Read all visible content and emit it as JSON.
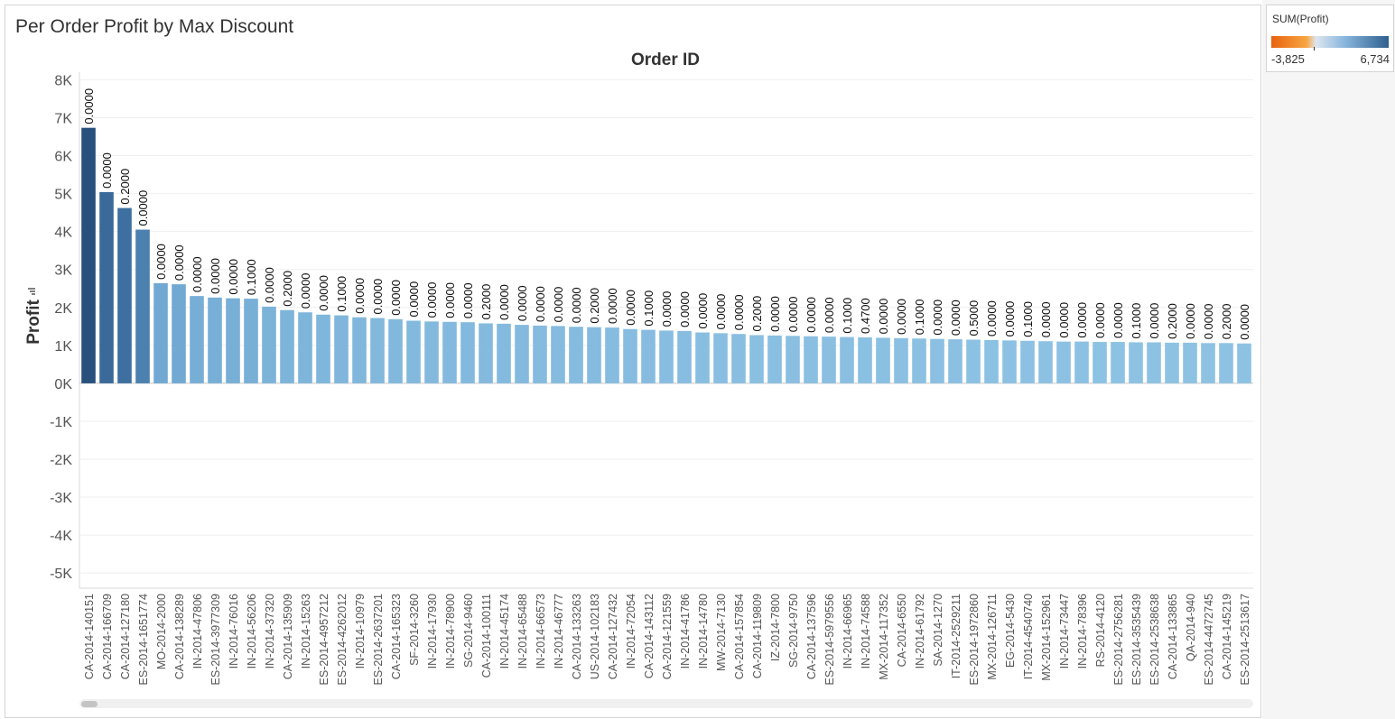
{
  "sheet_title": "Per Order Profit by Max Discount",
  "legend": {
    "title": "SUM(Profit)",
    "min_label": "-3,825",
    "max_label": "6,734",
    "colors": [
      "#e8620f",
      "#f7a542",
      "#dde5ee",
      "#8ab7de",
      "#2e5f8e"
    ]
  },
  "chart_data": {
    "type": "bar",
    "title": "Order ID",
    "xlabel": "",
    "ylabel": "Profit",
    "ylim": [
      -5400,
      8200
    ],
    "yticks": [
      8000,
      7000,
      6000,
      5000,
      4000,
      3000,
      2000,
      1000,
      0,
      -1000,
      -2000,
      -3000,
      -4000,
      -5000
    ],
    "ytick_labels": [
      "8K",
      "7K",
      "6K",
      "5K",
      "4K",
      "3K",
      "2K",
      "1K",
      "0K",
      "-1K",
      "-2K",
      "-3K",
      "-4K",
      "-5K"
    ],
    "grid": true,
    "color_range": [
      -3825,
      6734
    ],
    "categories": [
      "CA-2014-140151",
      "CA-2014-166709",
      "CA-2014-127180",
      "ES-2014-1651774",
      "MO-2014-2000",
      "CA-2014-138289",
      "IN-2014-47806",
      "ES-2014-3977309",
      "IN-2014-76016",
      "IN-2014-56206",
      "IN-2014-37320",
      "CA-2014-135909",
      "IN-2014-15263",
      "ES-2014-4957212",
      "ES-2014-4262012",
      "IN-2014-10979",
      "ES-2014-2637201",
      "CA-2014-165323",
      "SF-2014-3260",
      "IN-2014-17930",
      "IN-2014-78900",
      "SG-2014-9460",
      "CA-2014-100111",
      "IN-2014-45174",
      "IN-2014-65488",
      "IN-2014-66573",
      "IN-2014-46777",
      "CA-2014-133263",
      "US-2014-102183",
      "CA-2014-127432",
      "IN-2014-72054",
      "CA-2014-143112",
      "CA-2014-121559",
      "IN-2014-41786",
      "IN-2014-14780",
      "MW-2014-7130",
      "CA-2014-157854",
      "CA-2014-119809",
      "IZ-2014-7800",
      "SG-2014-9750",
      "CA-2014-137596",
      "ES-2014-5979556",
      "IN-2014-66965",
      "IN-2014-74588",
      "MX-2014-117352",
      "CA-2014-6550",
      "IN-2014-61792",
      "SA-2014-1270",
      "IT-2014-2529211",
      "ES-2014-1972860",
      "MX-2014-126711",
      "EG-2014-5430",
      "IT-2014-4540740",
      "MX-2014-152961",
      "IN-2014-73447",
      "IN-2014-78396",
      "RS-2014-4120",
      "ES-2014-2756281",
      "ES-2014-3535439",
      "ES-2014-2538638",
      "CA-2014-133865",
      "QA-2014-940",
      "ES-2014-4472745",
      "CA-2014-145219",
      "ES-2014-2513617"
    ],
    "values": [
      6734,
      5040,
      4620,
      4050,
      2640,
      2610,
      2300,
      2260,
      2240,
      2230,
      2020,
      1930,
      1870,
      1810,
      1790,
      1740,
      1720,
      1690,
      1650,
      1630,
      1620,
      1610,
      1580,
      1570,
      1540,
      1520,
      1510,
      1490,
      1480,
      1470,
      1430,
      1410,
      1390,
      1380,
      1340,
      1320,
      1300,
      1270,
      1260,
      1250,
      1240,
      1230,
      1220,
      1210,
      1200,
      1190,
      1180,
      1170,
      1160,
      1150,
      1140,
      1130,
      1120,
      1110,
      1100,
      1100,
      1090,
      1090,
      1080,
      1080,
      1070,
      1070,
      1060,
      1060,
      1050
    ],
    "data_labels": [
      "0.0000",
      "0.0000",
      "0.2000",
      "0.0000",
      "0.0000",
      "0.0000",
      "0.0000",
      "0.0000",
      "0.0000",
      "0.1000",
      "0.0000",
      "0.2000",
      "0.0000",
      "0.0000",
      "0.1000",
      "0.0000",
      "0.0000",
      "0.0000",
      "0.0000",
      "0.0000",
      "0.0000",
      "0.0000",
      "0.2000",
      "0.0000",
      "0.0000",
      "0.0000",
      "0.0000",
      "0.0000",
      "0.2000",
      "0.0000",
      "0.0000",
      "0.1000",
      "0.0000",
      "0.0000",
      "0.0000",
      "0.0000",
      "0.0000",
      "0.2000",
      "0.0000",
      "0.0000",
      "0.0000",
      "0.0000",
      "0.1000",
      "0.4700",
      "0.0000",
      "0.0000",
      "0.1000",
      "0.0000",
      "0.0000",
      "0.5000",
      "0.0000",
      "0.0000",
      "0.1000",
      "0.0000",
      "0.0000",
      "0.0000",
      "0.0000",
      "0.0000",
      "0.1000",
      "0.0000",
      "0.2000",
      "0.0000",
      "0.0000",
      "0.2000",
      "0.0000"
    ]
  }
}
